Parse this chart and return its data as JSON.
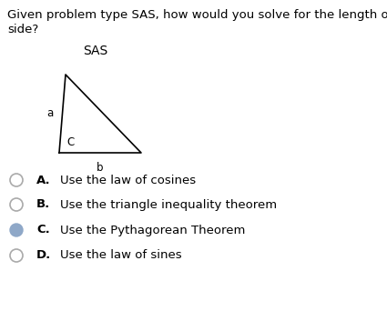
{
  "question_line1": "Given problem type SAS, how would you solve for the length of the remaining",
  "question_line2": "side?",
  "triangle_label": "SAS",
  "options": [
    {
      "letter": "A",
      "text": "Use the law of cosines",
      "selected": false
    },
    {
      "letter": "B",
      "text": "Use the triangle inequality theorem",
      "selected": false
    },
    {
      "letter": "C",
      "text": "Use the Pythagorean Theorem",
      "selected": true
    },
    {
      "letter": "D",
      "text": "Use the law of sines",
      "selected": false
    }
  ],
  "selected_fill_color": "#8fa8c8",
  "selected_edge_color": "#8fa8c8",
  "unselected_edge_color": "#aaaaaa",
  "text_color": "#000000",
  "bg_color": "#ffffff",
  "font_size_question": 9.5,
  "font_size_options": 9.5,
  "font_size_triangle_label": 10,
  "font_size_side_labels": 8.5
}
